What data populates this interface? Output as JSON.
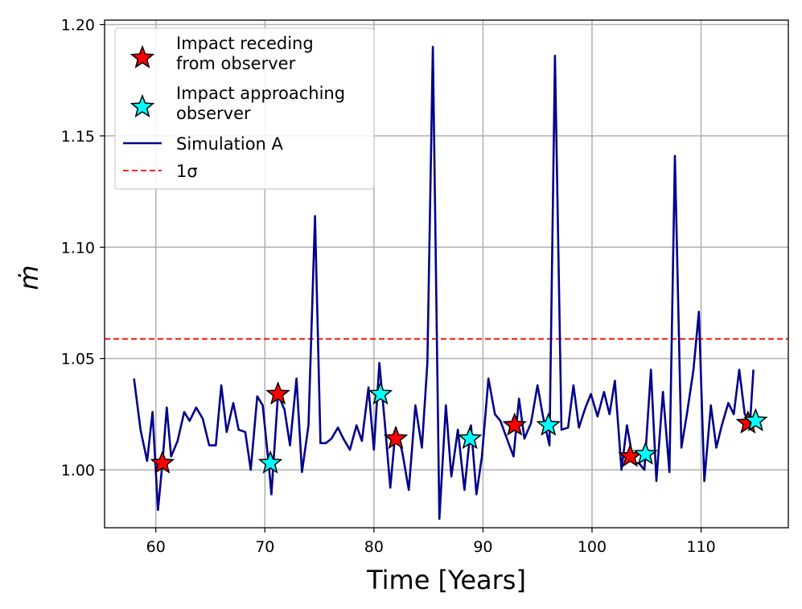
{
  "chart_data": {
    "type": "line",
    "xlabel": "Time [Years]",
    "ylabel": "ṁ",
    "xlim": [
      55.3,
      118.0
    ],
    "ylim": [
      0.974,
      1.202
    ],
    "xticks": [
      60,
      70,
      80,
      90,
      100,
      110
    ],
    "yticks": [
      1.0,
      1.05,
      1.1,
      1.15,
      1.2
    ],
    "ytick_labels": [
      "1.00",
      "1.05",
      "1.10",
      "1.15",
      "1.20"
    ],
    "grid": true,
    "sigma_line": {
      "value": 1.0588,
      "label": "1σ",
      "color": "#ff0000",
      "style": "dashed"
    },
    "series": [
      {
        "name": "Simulation A",
        "color": "#00008b",
        "x": [
          58.0,
          58.6,
          59.2,
          59.7,
          60.2,
          60.6,
          61.0,
          61.4,
          62.0,
          62.6,
          63.1,
          63.7,
          64.3,
          64.9,
          65.5,
          66.0,
          66.5,
          67.1,
          67.6,
          68.2,
          68.7,
          69.3,
          69.8,
          70.4,
          70.6,
          71.2,
          71.8,
          72.3,
          72.9,
          73.4,
          74.0,
          74.6,
          75.1,
          75.6,
          76.1,
          76.7,
          77.2,
          77.8,
          78.4,
          78.9,
          79.5,
          80.0,
          80.5,
          81.0,
          81.5,
          82.0,
          82.6,
          83.2,
          83.8,
          84.4,
          84.9,
          85.4,
          86.0,
          86.6,
          87.1,
          87.7,
          88.3,
          88.9,
          89.4,
          89.9,
          90.5,
          91.1,
          91.6,
          92.2,
          92.8,
          93.3,
          93.8,
          94.4,
          95.0,
          95.5,
          96.1,
          96.6,
          97.2,
          97.8,
          98.3,
          98.8,
          99.4,
          99.9,
          100.5,
          101.1,
          101.6,
          102.1,
          102.7,
          103.2,
          103.8,
          104.3,
          104.8,
          105.4,
          105.9,
          106.5,
          107.1,
          107.6,
          108.2,
          108.7,
          109.3,
          109.8,
          110.3,
          110.9,
          111.4,
          111.9,
          112.5,
          113.0,
          113.5,
          114.0,
          114.5,
          114.8
        ],
        "y": [
          1.041,
          1.018,
          1.004,
          1.026,
          0.982,
          1.003,
          1.028,
          1.006,
          1.013,
          1.026,
          1.022,
          1.028,
          1.023,
          1.011,
          1.011,
          1.038,
          1.017,
          1.03,
          1.018,
          1.017,
          1.0,
          1.033,
          1.029,
          1.0,
          0.989,
          1.034,
          1.027,
          1.011,
          1.041,
          0.999,
          1.02,
          1.114,
          1.012,
          1.012,
          1.014,
          1.019,
          1.014,
          1.009,
          1.02,
          1.013,
          1.037,
          1.009,
          1.048,
          1.021,
          0.992,
          1.019,
          1.008,
          0.991,
          1.029,
          1.01,
          1.048,
          1.19,
          0.978,
          1.029,
          0.997,
          1.018,
          0.991,
          1.02,
          0.989,
          1.006,
          1.041,
          1.025,
          1.022,
          1.014,
          1.006,
          1.032,
          1.014,
          1.021,
          1.038,
          1.024,
          1.011,
          1.186,
          1.018,
          1.019,
          1.038,
          1.019,
          1.028,
          1.034,
          1.024,
          1.035,
          1.025,
          1.04,
          1.0,
          1.02,
          1.003,
          1.003,
          1.0,
          1.045,
          0.995,
          1.035,
          0.999,
          1.141,
          1.01,
          1.025,
          1.045,
          1.071,
          0.995,
          1.029,
          1.01,
          1.02,
          1.03,
          1.025,
          1.045,
          1.025,
          1.022,
          1.045
        ]
      }
    ],
    "markers": [
      {
        "name": "Impact receding\nfrom observer",
        "lines": [
          "Impact receding",
          "from observer"
        ],
        "color": "#ff0000",
        "x": [
          60.6,
          71.2,
          82.0,
          92.9,
          103.5,
          114.3
        ],
        "y": [
          1.003,
          1.034,
          1.014,
          1.02,
          1.006,
          1.021
        ]
      },
      {
        "name": "Impact approaching\n observer",
        "lines": [
          "Impact approaching",
          " observer"
        ],
        "color": "#00ffff",
        "x": [
          70.5,
          80.6,
          88.8,
          96.0,
          104.9,
          115.0
        ],
        "y": [
          1.003,
          1.034,
          1.014,
          1.02,
          1.007,
          1.022
        ]
      }
    ],
    "legend": {
      "placement": "top-left",
      "entries": [
        "Impact receding\nfrom observer",
        "Impact approaching\n observer",
        "Simulation A",
        "1σ"
      ]
    }
  }
}
